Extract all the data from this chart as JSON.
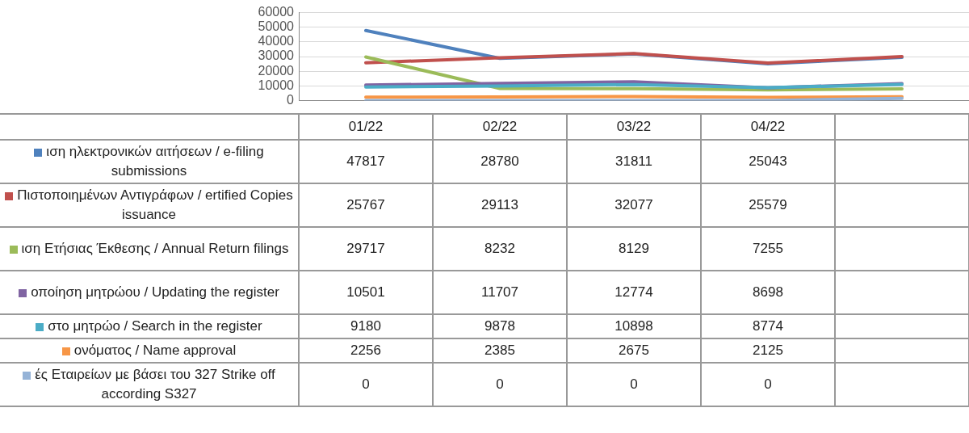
{
  "chart_data": {
    "type": "line",
    "categories": [
      "01/22",
      "02/22",
      "03/22",
      "04/22",
      null
    ],
    "ylim": [
      0,
      60000
    ],
    "yticks": [
      0,
      10000,
      20000,
      30000,
      40000,
      50000,
      60000
    ],
    "grid": "y",
    "legend": "bottom",
    "marker": "none",
    "line_style": "solid",
    "series": [
      {
        "name": "ιση ηλεκτρονικών αιτήσεων / e-filing submissions",
        "color": "#4f81bd",
        "values": [
          47817,
          28780,
          31811,
          25043,
          29500
        ],
        "value_labels": [
          "47817",
          "28780",
          "31811",
          "25043",
          null
        ]
      },
      {
        "name": "Πιστοποιημένων Αντιγράφων / ertified Copies issuance",
        "color": "#c0504d",
        "values": [
          25767,
          29113,
          32077,
          25579,
          30000
        ],
        "value_labels": [
          "25767",
          "29113",
          "32077",
          "25579",
          null
        ]
      },
      {
        "name": "ιση Ετήσιας Έκθεσης / Annual Return filings",
        "color": "#9bbb59",
        "values": [
          29717,
          8232,
          8129,
          7255,
          8000
        ],
        "value_labels": [
          "29717",
          "8232",
          "8129",
          "7255",
          null
        ]
      },
      {
        "name": "οποίηση μητρώου / Updating the register",
        "color": "#8064a2",
        "values": [
          10501,
          11707,
          12774,
          8698,
          11500
        ],
        "value_labels": [
          "10501",
          "11707",
          "12774",
          "8698",
          null
        ]
      },
      {
        "name": "στο μητρώο / Search in the register",
        "color": "#4bacc6",
        "values": [
          9180,
          9878,
          10898,
          8774,
          11000
        ],
        "value_labels": [
          "9180",
          "9878",
          "10898",
          "8774",
          null
        ]
      },
      {
        "name": "ονόματος / Name approval",
        "color": "#f79646",
        "values": [
          2256,
          2385,
          2675,
          2125,
          2500
        ],
        "value_labels": [
          "2256",
          "2385",
          "2675",
          "2125",
          null
        ]
      },
      {
        "name": "ές Εταιρείων  με  βάσει του 327 Strike off according S327",
        "color": "#95b3d7",
        "values": [
          0,
          0,
          0,
          0,
          1500
        ],
        "value_labels": [
          "0",
          "0",
          "0",
          "0",
          null
        ]
      }
    ]
  }
}
